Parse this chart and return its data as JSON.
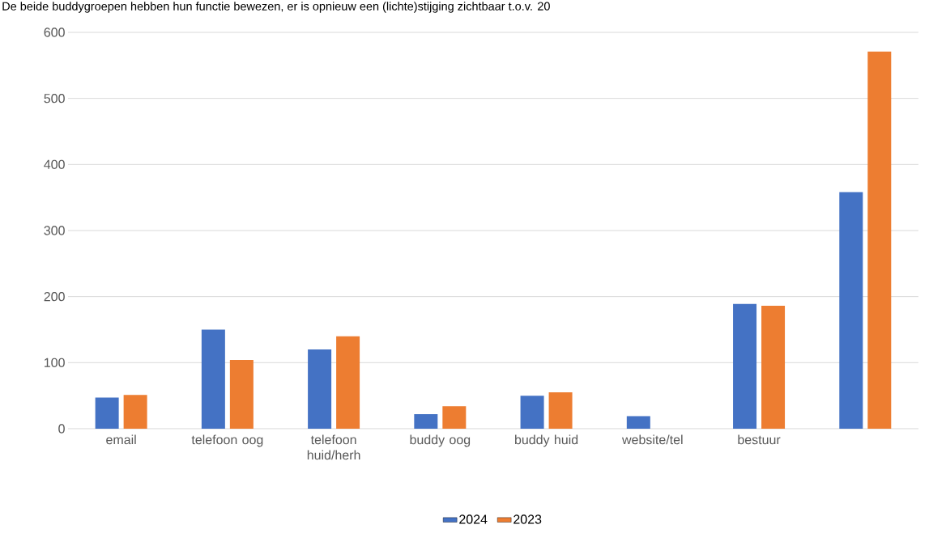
{
  "chart_data": {
    "type": "bar",
    "title": "De beide buddygroepen hebben hun functie bewezen, er is opnieuw een (lichte)stijging zichtbaar t.o.v. 20",
    "categories": [
      "email",
      "telefoon oog",
      "telefoon huid/herh",
      "buddy oog",
      "buddy huid",
      "website/tel",
      "bestuur",
      null
    ],
    "series": [
      {
        "name": "2024",
        "color": "#4472c4",
        "values": [
          47,
          150,
          120,
          22,
          50,
          19,
          189,
          358
        ]
      },
      {
        "name": "2023",
        "color": "#ed7d31",
        "values": [
          51,
          104,
          140,
          34,
          55,
          null,
          186,
          571
        ]
      }
    ],
    "ylim": [
      0,
      600
    ],
    "yticks": [
      0,
      100,
      200,
      300,
      400,
      500,
      600
    ],
    "grid": "y",
    "legend": "bottom"
  }
}
